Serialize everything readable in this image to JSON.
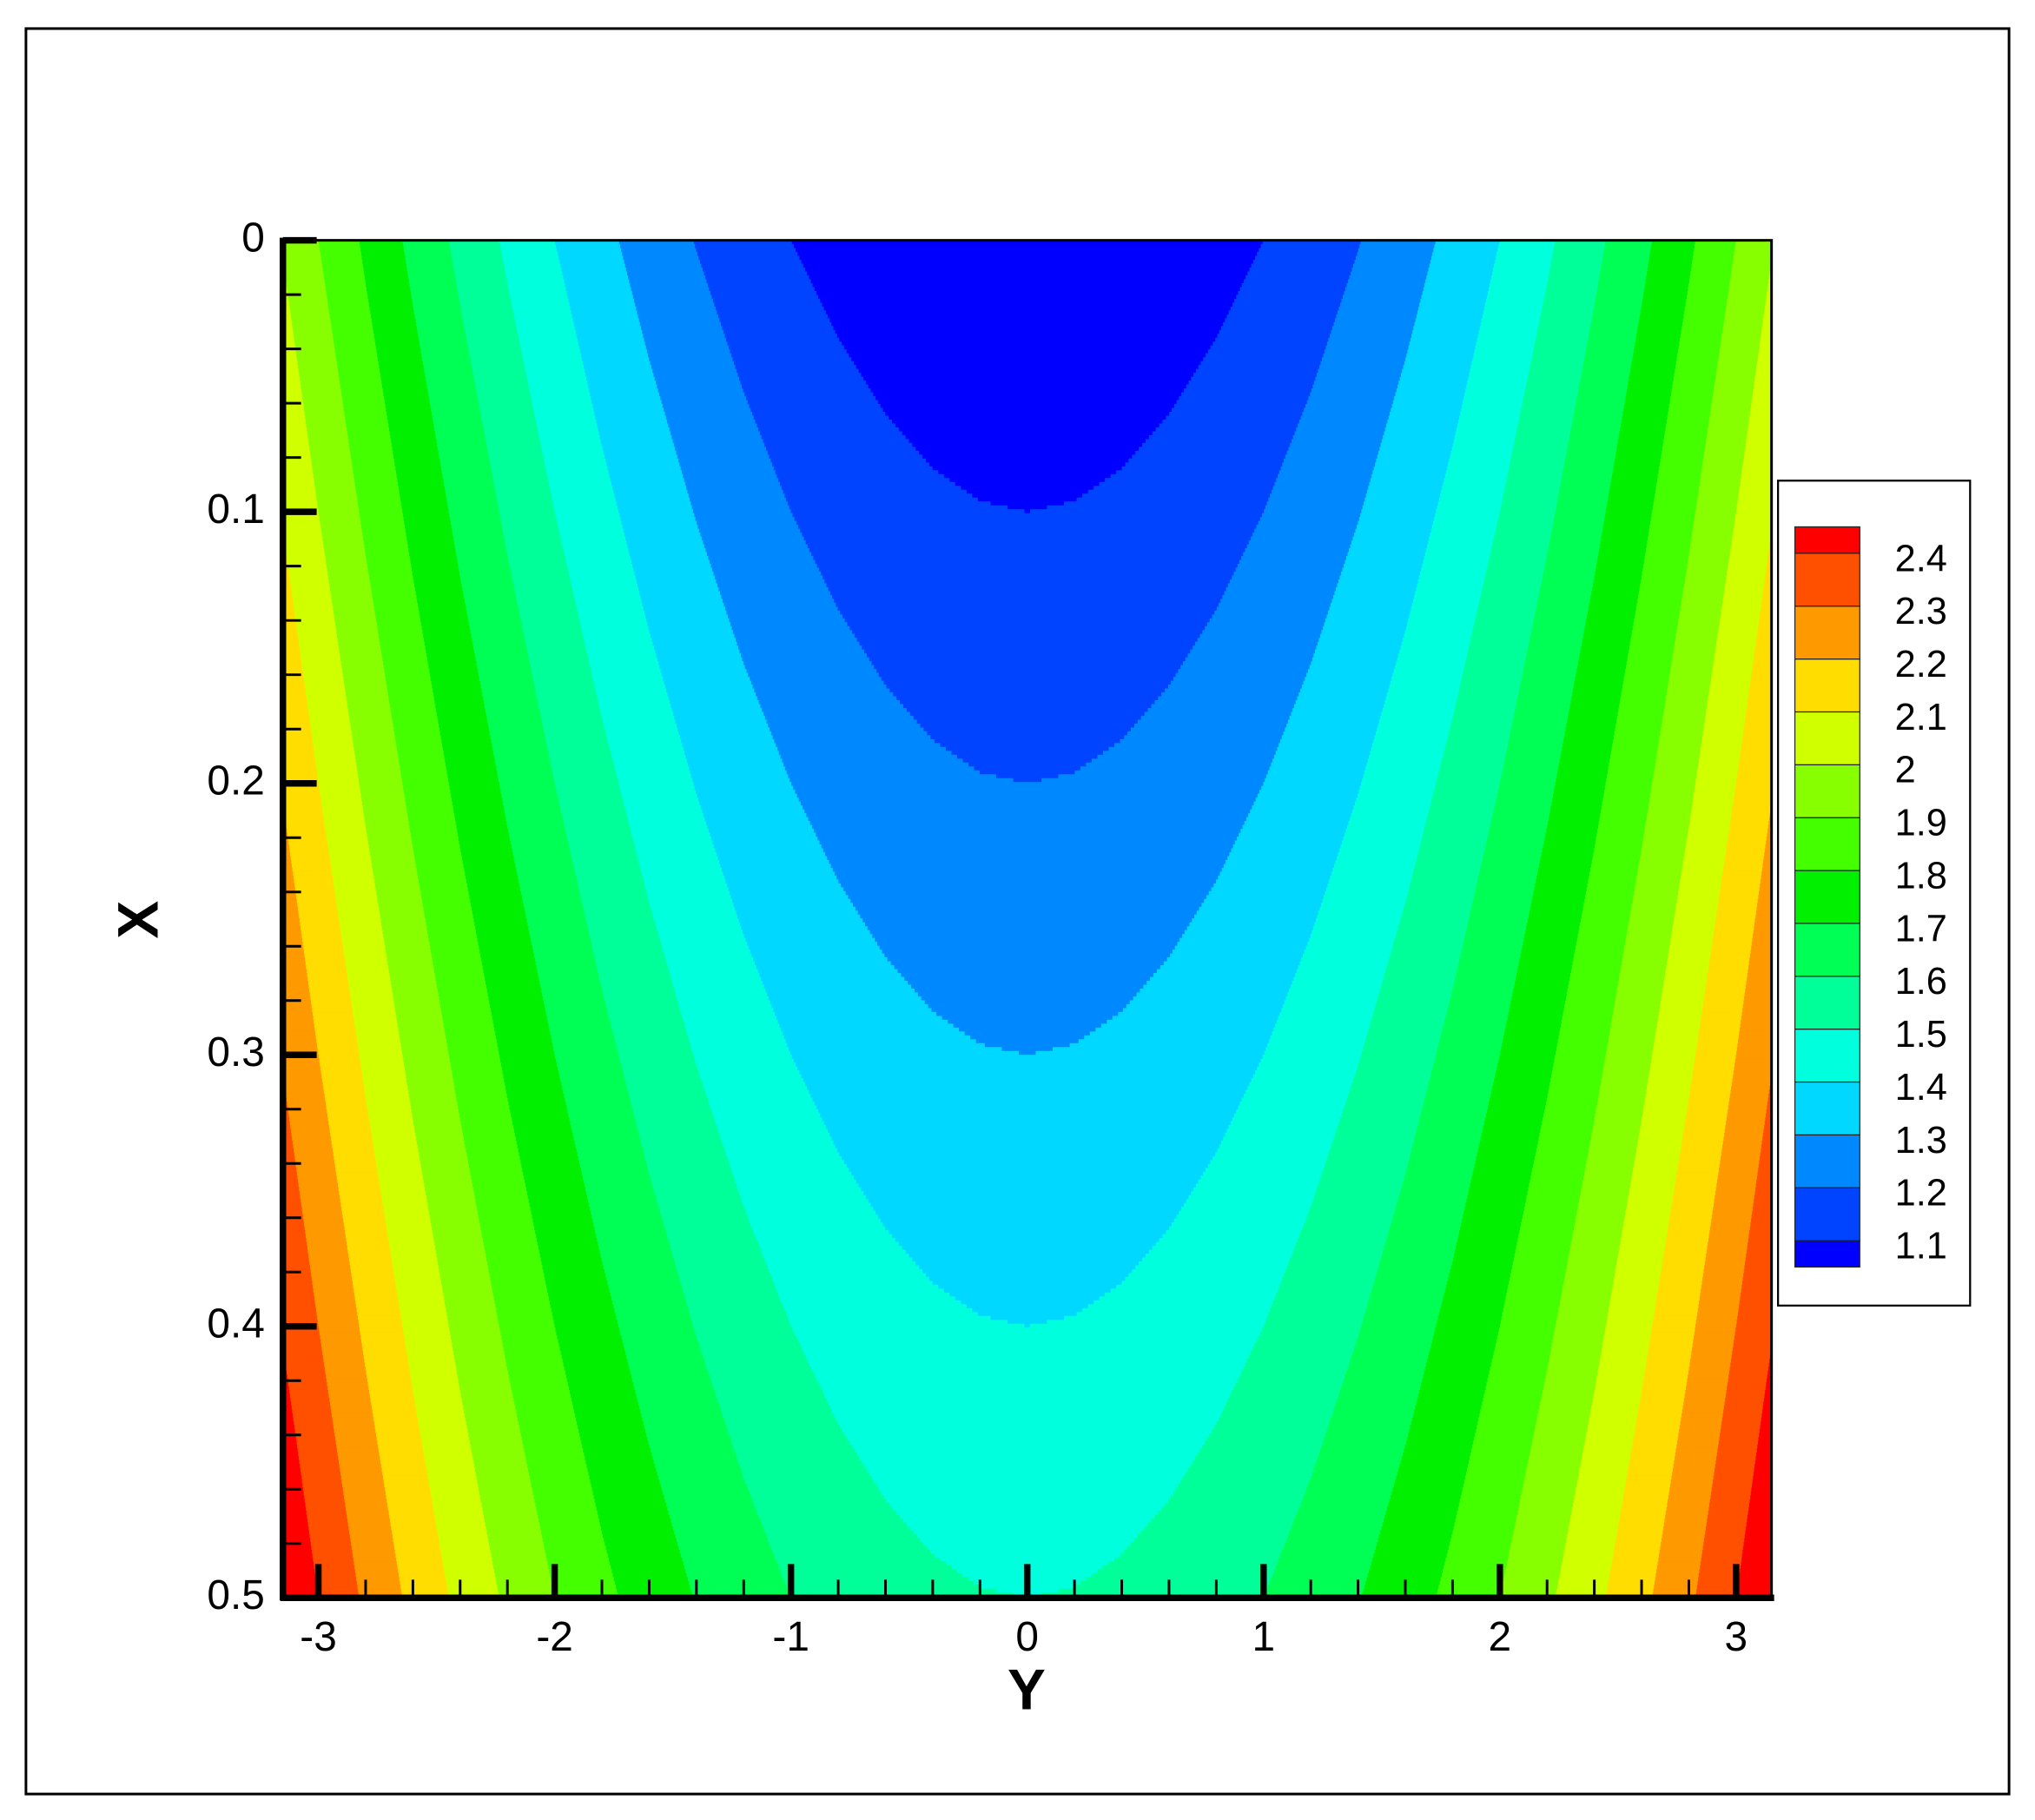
{
  "chart_data": {
    "type": "contour",
    "xlabel": "Y",
    "ylabel": "X",
    "xlim": [
      -3.15,
      3.15
    ],
    "ylim": [
      0.5,
      0
    ],
    "xticks": [
      -3,
      -2,
      -1,
      0,
      1,
      2,
      3
    ],
    "yticks": [
      0,
      0.1,
      0.2,
      0.3,
      0.4,
      0.5
    ],
    "xminorticks": [
      -2.8,
      -2.6,
      -2.4,
      -2.2,
      -1.8,
      -1.6,
      -1.4,
      -1.2,
      -0.8,
      -0.6,
      -0.4,
      -0.2,
      0.2,
      0.4,
      0.6,
      0.8,
      1.2,
      1.4,
      1.6,
      1.8,
      2.2,
      2.4,
      2.6,
      2.8
    ],
    "yminorticks": [
      0.02,
      0.04,
      0.06,
      0.08,
      0.12,
      0.14,
      0.16,
      0.18,
      0.22,
      0.24,
      0.26,
      0.28,
      0.32,
      0.34,
      0.36,
      0.38,
      0.42,
      0.44,
      0.46,
      0.48
    ],
    "rows_X": [
      0,
      0.25,
      0.5
    ],
    "cols_Y": [
      -3.2,
      -3.0,
      -2.8,
      -2.6,
      -2.4,
      -2.2,
      -2.0,
      -1.8,
      -1.6,
      -1.4,
      -1.2,
      -1.0,
      -0.8,
      -0.6,
      -0.4,
      -0.2,
      0,
      0.2,
      0.4,
      0.6,
      0.8,
      1.0,
      1.2,
      1.4,
      1.6,
      1.8,
      2.0,
      2.2,
      2.4,
      2.6,
      2.8,
      3.0,
      3.2
    ],
    "z": [
      [
        2.024,
        1.9,
        1.784,
        1.676,
        1.576,
        1.484,
        1.4,
        1.324,
        1.256,
        1.196,
        1.144,
        1.1,
        1.064,
        1.036,
        1.016,
        1.004,
        1,
        1.004,
        1.016,
        1.036,
        1.064,
        1.1,
        1.144,
        1.196,
        1.256,
        1.324,
        1.4,
        1.484,
        1.576,
        1.676,
        1.784,
        1.9,
        2.024
      ],
      [
        2.274,
        2.15,
        2.034,
        1.926,
        1.826,
        1.734,
        1.65,
        1.574,
        1.506,
        1.446,
        1.394,
        1.35,
        1.314,
        1.286,
        1.266,
        1.254,
        1.25,
        1.254,
        1.266,
        1.286,
        1.314,
        1.35,
        1.394,
        1.446,
        1.506,
        1.574,
        1.65,
        1.734,
        1.826,
        1.926,
        2.034,
        2.15,
        2.274
      ],
      [
        2.524,
        2.4,
        2.284,
        2.176,
        2.076,
        1.984,
        1.9,
        1.824,
        1.756,
        1.696,
        1.644,
        1.6,
        1.564,
        1.536,
        1.516,
        1.504,
        1.5,
        1.504,
        1.516,
        1.536,
        1.564,
        1.6,
        1.644,
        1.696,
        1.756,
        1.824,
        1.9,
        1.984,
        2.076,
        2.176,
        2.284,
        2.4,
        2.524
      ]
    ],
    "levels": [
      1.1,
      1.2,
      1.3,
      1.4,
      1.5,
      1.6,
      1.7,
      1.8,
      1.9,
      2,
      2.1,
      2.2,
      2.3,
      2.4
    ],
    "colors": [
      "#0000ff",
      "#0044ff",
      "#0088ff",
      "#00d8ff",
      "#00ffdd",
      "#00ff99",
      "#00ff55",
      "#00f000",
      "#44ff00",
      "#88ff00",
      "#d0ff00",
      "#ffdd00",
      "#ff9900",
      "#ff5000",
      "#ff0000"
    ]
  }
}
